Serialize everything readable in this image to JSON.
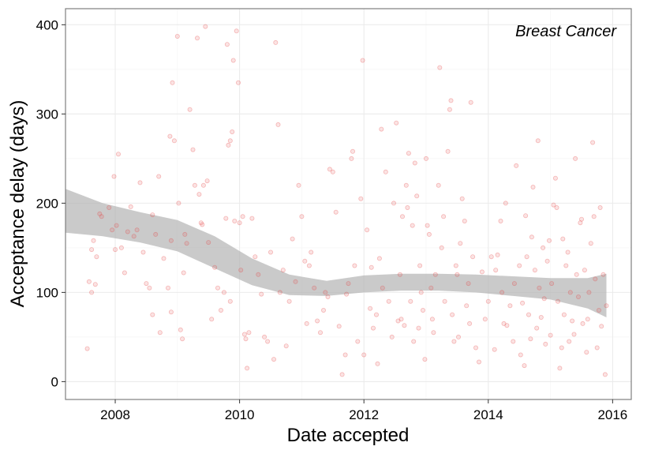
{
  "colors": {
    "points": "#e64545",
    "band": "#b3b3b3",
    "grid_major": "#ebebeb",
    "grid_minor": "#f6f6f6",
    "panel_border": "#7f7f7f"
  },
  "chart_data": {
    "type": "scatter",
    "title": "",
    "panel_label": "Breast Cancer",
    "xlabel": "Date accepted",
    "ylabel": "Acceptance delay (days)",
    "xlim": [
      2007.2,
      2016.3
    ],
    "ylim": [
      -20,
      418
    ],
    "x_ticks": [
      2008,
      2010,
      2012,
      2014,
      2016
    ],
    "y_ticks": [
      0,
      100,
      200,
      300,
      400
    ],
    "grid": true,
    "legend": "none",
    "smooth_band": {
      "x": [
        2007.2,
        2007.8,
        2008.4,
        2009.0,
        2009.6,
        2010.2,
        2010.8,
        2011.4,
        2012.0,
        2012.6,
        2013.2,
        2013.8,
        2014.4,
        2015.0,
        2015.6,
        2015.9
      ],
      "lower": [
        167,
        163,
        156,
        146,
        127,
        108,
        97,
        96,
        100,
        102,
        102,
        100,
        96,
        92,
        82,
        72
      ],
      "upper": [
        216,
        200,
        190,
        181,
        163,
        138,
        120,
        113,
        119,
        121,
        121,
        120,
        118,
        116,
        116,
        121
      ]
    },
    "points": [
      [
        2007.55,
        37
      ],
      [
        2007.58,
        112
      ],
      [
        2007.62,
        100
      ],
      [
        2007.62,
        148
      ],
      [
        2007.65,
        158
      ],
      [
        2007.7,
        140
      ],
      [
        2007.68,
        109
      ],
      [
        2007.75,
        188
      ],
      [
        2007.78,
        185
      ],
      [
        2007.9,
        195
      ],
      [
        2007.95,
        170
      ],
      [
        2007.98,
        230
      ],
      [
        2008.0,
        148
      ],
      [
        2008.02,
        175
      ],
      [
        2008.05,
        255
      ],
      [
        2008.1,
        150
      ],
      [
        2008.15,
        122
      ],
      [
        2008.2,
        168
      ],
      [
        2008.25,
        196
      ],
      [
        2008.3,
        163
      ],
      [
        2008.35,
        170
      ],
      [
        2008.4,
        223
      ],
      [
        2008.45,
        145
      ],
      [
        2008.5,
        110
      ],
      [
        2008.55,
        105
      ],
      [
        2008.6,
        187
      ],
      [
        2008.6,
        75
      ],
      [
        2008.65,
        165
      ],
      [
        2008.7,
        230
      ],
      [
        2008.72,
        55
      ],
      [
        2008.78,
        138
      ],
      [
        2008.85,
        105
      ],
      [
        2008.88,
        275
      ],
      [
        2008.9,
        158
      ],
      [
        2008.9,
        78
      ],
      [
        2008.92,
        335
      ],
      [
        2008.95,
        270
      ],
      [
        2009.0,
        387
      ],
      [
        2009.02,
        200
      ],
      [
        2009.05,
        58
      ],
      [
        2009.08,
        48
      ],
      [
        2009.1,
        122
      ],
      [
        2009.12,
        165
      ],
      [
        2009.15,
        155
      ],
      [
        2009.2,
        305
      ],
      [
        2009.25,
        260
      ],
      [
        2009.28,
        220
      ],
      [
        2009.32,
        385
      ],
      [
        2009.35,
        210
      ],
      [
        2009.38,
        178
      ],
      [
        2009.4,
        176
      ],
      [
        2009.42,
        220
      ],
      [
        2009.45,
        398
      ],
      [
        2009.48,
        225
      ],
      [
        2009.5,
        156
      ],
      [
        2009.55,
        70
      ],
      [
        2009.6,
        128
      ],
      [
        2009.65,
        105
      ],
      [
        2009.7,
        80
      ],
      [
        2009.75,
        100
      ],
      [
        2009.78,
        183
      ],
      [
        2009.8,
        378
      ],
      [
        2009.82,
        265
      ],
      [
        2009.85,
        270
      ],
      [
        2009.85,
        90
      ],
      [
        2009.88,
        280
      ],
      [
        2009.9,
        360
      ],
      [
        2009.92,
        180
      ],
      [
        2009.95,
        393
      ],
      [
        2009.98,
        335
      ],
      [
        2010.0,
        178
      ],
      [
        2010.02,
        125
      ],
      [
        2010.05,
        185
      ],
      [
        2010.08,
        53
      ],
      [
        2010.1,
        48
      ],
      [
        2010.12,
        15
      ],
      [
        2010.15,
        55
      ],
      [
        2010.2,
        183
      ],
      [
        2010.25,
        140
      ],
      [
        2010.3,
        120
      ],
      [
        2010.35,
        98
      ],
      [
        2010.4,
        50
      ],
      [
        2010.45,
        45
      ],
      [
        2010.5,
        145
      ],
      [
        2010.55,
        25
      ],
      [
        2010.58,
        380
      ],
      [
        2010.62,
        288
      ],
      [
        2010.65,
        100
      ],
      [
        2010.7,
        125
      ],
      [
        2010.75,
        40
      ],
      [
        2010.8,
        90
      ],
      [
        2010.85,
        160
      ],
      [
        2010.9,
        112
      ],
      [
        2010.95,
        220
      ],
      [
        2011.0,
        185
      ],
      [
        2011.05,
        135
      ],
      [
        2011.08,
        65
      ],
      [
        2011.12,
        130
      ],
      [
        2011.15,
        145
      ],
      [
        2011.2,
        105
      ],
      [
        2011.25,
        68
      ],
      [
        2011.3,
        55
      ],
      [
        2011.35,
        80
      ],
      [
        2011.38,
        100
      ],
      [
        2011.42,
        95
      ],
      [
        2011.45,
        238
      ],
      [
        2011.5,
        235
      ],
      [
        2011.55,
        190
      ],
      [
        2011.6,
        62
      ],
      [
        2011.65,
        8
      ],
      [
        2011.7,
        30
      ],
      [
        2011.72,
        98
      ],
      [
        2011.75,
        110
      ],
      [
        2011.8,
        250
      ],
      [
        2011.82,
        258
      ],
      [
        2011.85,
        130
      ],
      [
        2011.9,
        45
      ],
      [
        2011.95,
        205
      ],
      [
        2011.98,
        360
      ],
      [
        2012.0,
        30
      ],
      [
        2012.05,
        170
      ],
      [
        2012.1,
        82
      ],
      [
        2012.12,
        128
      ],
      [
        2012.15,
        60
      ],
      [
        2012.2,
        75
      ],
      [
        2012.22,
        20
      ],
      [
        2012.25,
        138
      ],
      [
        2012.28,
        283
      ],
      [
        2012.3,
        105
      ],
      [
        2012.35,
        235
      ],
      [
        2012.4,
        90
      ],
      [
        2012.45,
        50
      ],
      [
        2012.48,
        200
      ],
      [
        2012.52,
        290
      ],
      [
        2012.55,
        68
      ],
      [
        2012.58,
        120
      ],
      [
        2012.6,
        70
      ],
      [
        2012.62,
        185
      ],
      [
        2012.65,
        63
      ],
      [
        2012.68,
        220
      ],
      [
        2012.7,
        195
      ],
      [
        2012.72,
        256
      ],
      [
        2012.75,
        90
      ],
      [
        2012.78,
        175
      ],
      [
        2012.8,
        45
      ],
      [
        2012.82,
        245
      ],
      [
        2012.85,
        208
      ],
      [
        2012.88,
        60
      ],
      [
        2012.9,
        130
      ],
      [
        2012.92,
        100
      ],
      [
        2012.95,
        80
      ],
      [
        2012.98,
        25
      ],
      [
        2013.0,
        250
      ],
      [
        2013.02,
        175
      ],
      [
        2013.05,
        165
      ],
      [
        2013.08,
        105
      ],
      [
        2013.1,
        70
      ],
      [
        2013.12,
        55
      ],
      [
        2013.15,
        120
      ],
      [
        2013.2,
        220
      ],
      [
        2013.22,
        352
      ],
      [
        2013.25,
        150
      ],
      [
        2013.28,
        185
      ],
      [
        2013.3,
        90
      ],
      [
        2013.35,
        258
      ],
      [
        2013.38,
        305
      ],
      [
        2013.4,
        315
      ],
      [
        2013.42,
        75
      ],
      [
        2013.45,
        45
      ],
      [
        2013.48,
        130
      ],
      [
        2013.5,
        120
      ],
      [
        2013.52,
        50
      ],
      [
        2013.55,
        155
      ],
      [
        2013.58,
        205
      ],
      [
        2013.62,
        180
      ],
      [
        2013.65,
        85
      ],
      [
        2013.68,
        110
      ],
      [
        2013.7,
        65
      ],
      [
        2013.72,
        313
      ],
      [
        2013.75,
        140
      ],
      [
        2013.8,
        38
      ],
      [
        2013.85,
        22
      ],
      [
        2013.9,
        123
      ],
      [
        2013.95,
        70
      ],
      [
        2014.0,
        90
      ],
      [
        2014.05,
        140
      ],
      [
        2014.1,
        36
      ],
      [
        2014.12,
        125
      ],
      [
        2014.15,
        142
      ],
      [
        2014.2,
        180
      ],
      [
        2014.22,
        100
      ],
      [
        2014.25,
        65
      ],
      [
        2014.28,
        200
      ],
      [
        2014.3,
        63
      ],
      [
        2014.35,
        85
      ],
      [
        2014.4,
        45
      ],
      [
        2014.42,
        110
      ],
      [
        2014.45,
        242
      ],
      [
        2014.5,
        130
      ],
      [
        2014.52,
        30
      ],
      [
        2014.55,
        88
      ],
      [
        2014.58,
        18
      ],
      [
        2014.6,
        186
      ],
      [
        2014.62,
        140
      ],
      [
        2014.65,
        75
      ],
      [
        2014.68,
        48
      ],
      [
        2014.7,
        162
      ],
      [
        2014.72,
        218
      ],
      [
        2014.75,
        125
      ],
      [
        2014.78,
        60
      ],
      [
        2014.8,
        270
      ],
      [
        2014.82,
        105
      ],
      [
        2014.85,
        72
      ],
      [
        2014.88,
        150
      ],
      [
        2014.9,
        93
      ],
      [
        2014.92,
        42
      ],
      [
        2014.95,
        135
      ],
      [
        2014.98,
        158
      ],
      [
        2015.0,
        52
      ],
      [
        2015.02,
        110
      ],
      [
        2015.05,
        198
      ],
      [
        2015.08,
        228
      ],
      [
        2015.1,
        195
      ],
      [
        2015.12,
        90
      ],
      [
        2015.15,
        15
      ],
      [
        2015.18,
        38
      ],
      [
        2015.2,
        160
      ],
      [
        2015.22,
        75
      ],
      [
        2015.25,
        130
      ],
      [
        2015.28,
        145
      ],
      [
        2015.3,
        45
      ],
      [
        2015.32,
        100
      ],
      [
        2015.35,
        68
      ],
      [
        2015.38,
        53
      ],
      [
        2015.4,
        250
      ],
      [
        2015.42,
        120
      ],
      [
        2015.45,
        95
      ],
      [
        2015.48,
        178
      ],
      [
        2015.5,
        182
      ],
      [
        2015.52,
        65
      ],
      [
        2015.55,
        125
      ],
      [
        2015.58,
        33
      ],
      [
        2015.6,
        70
      ],
      [
        2015.62,
        100
      ],
      [
        2015.65,
        155
      ],
      [
        2015.68,
        268
      ],
      [
        2015.7,
        185
      ],
      [
        2015.72,
        115
      ],
      [
        2015.75,
        38
      ],
      [
        2015.78,
        80
      ],
      [
        2015.8,
        195
      ],
      [
        2015.82,
        62
      ],
      [
        2015.85,
        120
      ],
      [
        2015.88,
        8
      ],
      [
        2015.9,
        85
      ]
    ]
  }
}
